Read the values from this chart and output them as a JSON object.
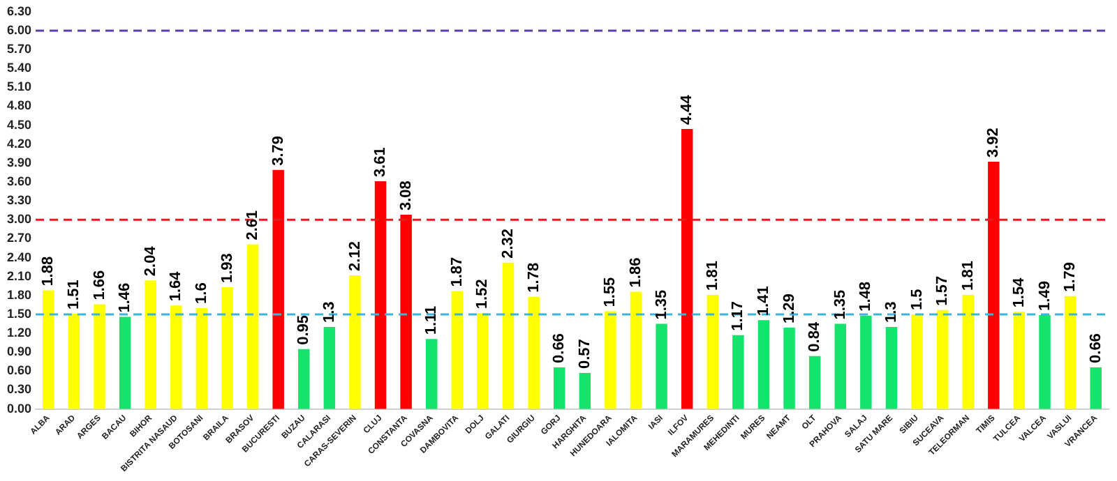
{
  "chart_data": {
    "type": "bar",
    "categories": [
      "ALBA",
      "ARAD",
      "ARGES",
      "BACAU",
      "BIHOR",
      "BISTRITA NASAUD",
      "BOTOSANI",
      "BRAILA",
      "BRASOV",
      "BUCURESTI",
      "BUZAU",
      "CALARASI",
      "CARAS-SEVERIN",
      "CLUJ",
      "CONSTANTA",
      "COVASNA",
      "DAMBOVITA",
      "DOLJ",
      "GALATI",
      "GIURGIU",
      "GORJ",
      "HARGHITA",
      "HUNEDOARA",
      "IALOMITA",
      "IASI",
      "ILFOV",
      "MARAMURES",
      "MEHEDINTI",
      "MURES",
      "NEAMT",
      "OLT",
      "PRAHOVA",
      "SALAJ",
      "SATU MARE",
      "SIBIU",
      "SUCEAVA",
      "TELEORMAN",
      "TIMIS",
      "TULCEA",
      "VALCEA",
      "VASLUI",
      "VRANCEA"
    ],
    "values": [
      1.88,
      1.51,
      1.66,
      1.46,
      2.04,
      1.64,
      1.6,
      1.93,
      2.61,
      3.79,
      0.95,
      1.3,
      2.12,
      3.61,
      3.08,
      1.11,
      1.87,
      1.52,
      2.32,
      1.78,
      0.66,
      0.57,
      1.55,
      1.86,
      1.35,
      4.44,
      1.81,
      1.17,
      1.41,
      1.29,
      0.84,
      1.35,
      1.48,
      1.3,
      1.5,
      1.57,
      1.81,
      3.92,
      1.54,
      1.49,
      1.79,
      0.66
    ],
    "colors": [
      "#ffff00",
      "#ffff00",
      "#ffff00",
      "#14e36c",
      "#ffff00",
      "#ffff00",
      "#ffff00",
      "#ffff00",
      "#ffff00",
      "#ff0000",
      "#14e36c",
      "#14e36c",
      "#ffff00",
      "#ff0000",
      "#ff0000",
      "#14e36c",
      "#ffff00",
      "#ffff00",
      "#ffff00",
      "#ffff00",
      "#14e36c",
      "#14e36c",
      "#ffff00",
      "#ffff00",
      "#14e36c",
      "#ff0000",
      "#ffff00",
      "#14e36c",
      "#14e36c",
      "#14e36c",
      "#14e36c",
      "#14e36c",
      "#14e36c",
      "#14e36c",
      "#ffff00",
      "#ffff00",
      "#ffff00",
      "#ff0000",
      "#ffff00",
      "#14e36c",
      "#ffff00",
      "#14e36c"
    ],
    "ylim": [
      0,
      6.3
    ],
    "yticks": [
      {
        "value": 0,
        "label": "0.00"
      },
      {
        "value": 0.3,
        "label": "0.30"
      },
      {
        "value": 0.6,
        "label": "0.60"
      },
      {
        "value": 0.9,
        "label": "0.90"
      },
      {
        "value": 1.2,
        "label": "1.20"
      },
      {
        "value": 1.5,
        "label": "1.50"
      },
      {
        "value": 1.8,
        "label": "1.80"
      },
      {
        "value": 2.1,
        "label": "2.10"
      },
      {
        "value": 2.4,
        "label": "2.40"
      },
      {
        "value": 2.7,
        "label": "2.70"
      },
      {
        "value": 3,
        "label": "3.00"
      },
      {
        "value": 3.3,
        "label": "3.30"
      },
      {
        "value": 3.6,
        "label": "3.60"
      },
      {
        "value": 3.9,
        "label": "3.90"
      },
      {
        "value": 4.2,
        "label": "4.20"
      },
      {
        "value": 4.5,
        "label": "4.50"
      },
      {
        "value": 4.8,
        "label": "4.80"
      },
      {
        "value": 5.1,
        "label": "5.10"
      },
      {
        "value": 5.4,
        "label": "5.40"
      },
      {
        "value": 5.7,
        "label": "5.70"
      },
      {
        "value": 6,
        "label": "6.00"
      },
      {
        "value": 6.3,
        "label": "6.30"
      }
    ],
    "ref_lines": [
      {
        "axis": "y",
        "value": 6,
        "color": "#5b3fa6",
        "line_style": "dashed"
      },
      {
        "axis": "y",
        "value": 3,
        "color": "#e02020",
        "line_style": "dashed"
      },
      {
        "axis": "y",
        "value": 1.5,
        "color": "#3cb4dc",
        "line_style": "dashed"
      }
    ],
    "data_labels": true,
    "grid": false,
    "legend": false
  }
}
